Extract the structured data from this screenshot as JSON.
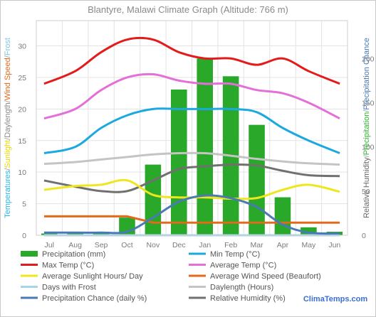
{
  "chart_data": {
    "type": "bar",
    "title": "Blantyre, Malawi Climate Graph (Altitude: 766 m)",
    "categories": [
      "Jul",
      "Aug",
      "Sep",
      "Oct",
      "Nov",
      "Dec",
      "Jan",
      "Feb",
      "Mar",
      "Apr",
      "May",
      "Jun"
    ],
    "left_axis": {
      "label_parts": [
        {
          "text": "Temperatures",
          "color": "#29b6e6"
        },
        {
          "text": "/",
          "color": "#9a9a9a"
        },
        {
          "text": "Sunlight",
          "color": "#e8d800"
        },
        {
          "text": "/",
          "color": "#9a9a9a"
        },
        {
          "text": "Daylength",
          "color": "#8a8a8a"
        },
        {
          "text": "/",
          "color": "#9a9a9a"
        },
        {
          "text": "Wind Speed",
          "color": "#e26a1a"
        },
        {
          "text": "/",
          "color": "#9a9a9a"
        },
        {
          "text": "Frost",
          "color": "#7fc6e0"
        }
      ],
      "ylim": [
        0,
        34
      ],
      "ticks": [
        0,
        5,
        10,
        15,
        20,
        25,
        30
      ]
    },
    "right_axis": {
      "label_parts": [
        {
          "text": "Relative Humidity",
          "color": "#666666"
        },
        {
          "text": "/",
          "color": "#9a9a9a"
        },
        {
          "text": "Precipitation",
          "color": "#2db52d"
        },
        {
          "text": "/",
          "color": "#9a9a9a"
        },
        {
          "text": "Precipitation Chance",
          "color": "#4a7ab5"
        }
      ],
      "ylim": [
        0,
        243
      ],
      "ticks": [
        0,
        50,
        100,
        150,
        200
      ]
    },
    "bars": {
      "name": "Precipitation (mm)",
      "color": "#29a829",
      "axis": "right",
      "values": [
        2,
        2,
        4,
        20,
        80,
        165,
        200,
        180,
        125,
        43,
        9,
        4
      ]
    },
    "series": [
      {
        "name": "Max Temp (°C)",
        "color": "#e21b1b",
        "axis": "left",
        "values": [
          24,
          26,
          29,
          31,
          31,
          29,
          28,
          28,
          27,
          28,
          26,
          24
        ]
      },
      {
        "name": "Average Temp (°C)",
        "color": "#e46fd8",
        "axis": "left",
        "values": [
          18.5,
          20,
          23,
          25,
          25.5,
          24.5,
          24,
          24,
          23,
          22.5,
          21,
          18.5
        ]
      },
      {
        "name": "Min Temp (°C)",
        "color": "#1ba9e0",
        "axis": "left",
        "values": [
          13,
          14,
          17,
          19,
          20,
          20,
          20,
          20,
          19.5,
          17,
          15,
          13
        ]
      },
      {
        "name": "Daylength (Hours)",
        "color": "#c4c4c4",
        "axis": "left",
        "values": [
          11.3,
          11.6,
          12,
          12.4,
          12.8,
          13,
          13,
          12.6,
          12.1,
          11.7,
          11.4,
          11.2
        ]
      },
      {
        "name": "Average Sunlight Hours/ Day",
        "color": "#f0e61e",
        "axis": "left",
        "values": [
          7.2,
          7.8,
          8,
          8.7,
          6.4,
          6,
          6,
          5.8,
          5.9,
          7.2,
          8,
          6.9
        ]
      },
      {
        "name": "Relative Humidity (%)",
        "color": "#707070",
        "axis": "right",
        "values": [
          62,
          55,
          50,
          50,
          62,
          75,
          78,
          80,
          79,
          73,
          68,
          67
        ]
      },
      {
        "name": "Average Wind Speed (Beaufort)",
        "color": "#e26a1a",
        "axis": "left",
        "values": [
          3,
          3,
          3,
          3,
          2,
          2,
          2,
          2,
          2,
          2,
          2,
          2
        ]
      },
      {
        "name": "Precipitation Chance (daily %)",
        "color": "#4a7ab5",
        "axis": "right",
        "values": [
          3,
          3,
          3,
          4,
          20,
          38,
          45,
          42,
          32,
          12,
          3,
          2
        ]
      },
      {
        "name": "Days with Frost",
        "color": "#a6d5ea",
        "axis": "left",
        "values": [
          0,
          0,
          0,
          0,
          0,
          0,
          0,
          0,
          0,
          0,
          0,
          0
        ]
      }
    ],
    "legend_order": [
      "Precipitation (mm)",
      "Min Temp (°C)",
      "Max Temp (°C)",
      "Average Temp (°C)",
      "Average Sunlight Hours/ Day",
      "Average Wind Speed (Beaufort)",
      "Days with Frost",
      "Daylength (Hours)",
      "Precipitation Chance (daily %)",
      "Relative Humidity (%)"
    ],
    "legend_placement": "bottom",
    "grid": true
  },
  "branding": {
    "brand_main": "ClimaTemps.com",
    "brand_main_color": "#3b6fd1"
  }
}
